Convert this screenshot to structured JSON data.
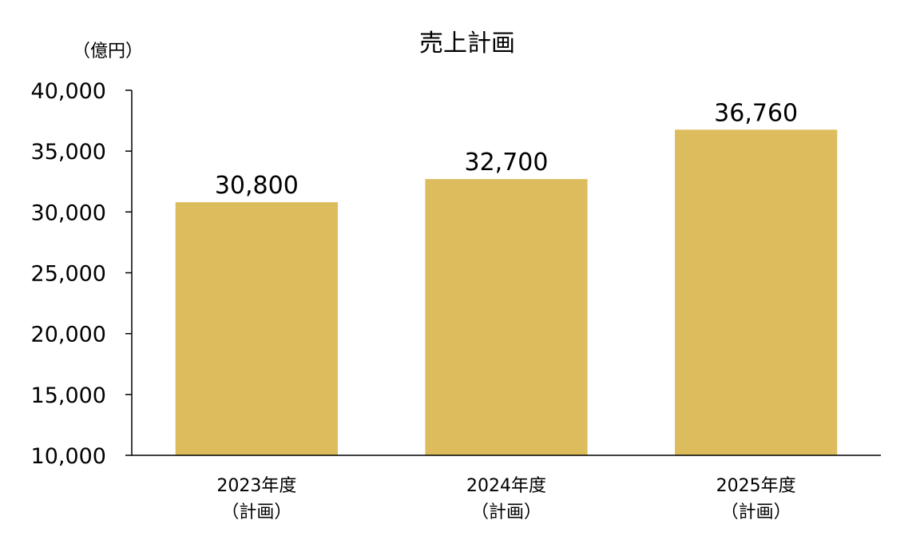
{
  "chart_data": {
    "type": "bar",
    "title": "売上計画",
    "unit_label": "（億円）",
    "categories": [
      [
        "2023年度",
        "（計画）"
      ],
      [
        "2024年度",
        "（計画）"
      ],
      [
        "2025年度",
        "（計画）"
      ]
    ],
    "values": [
      30800,
      32700,
      36760
    ],
    "data_labels": [
      "30,800",
      "32,700",
      "36,760"
    ],
    "ylim": [
      10000,
      40000
    ],
    "yticks": [
      10000,
      15000,
      20000,
      25000,
      30000,
      35000,
      40000
    ],
    "ytick_labels": [
      "10,000",
      "15,000",
      "20,000",
      "25,000",
      "30,000",
      "35,000",
      "40,000"
    ],
    "grid": false,
    "legend": "none",
    "bar_color": "#dcbc5c"
  }
}
